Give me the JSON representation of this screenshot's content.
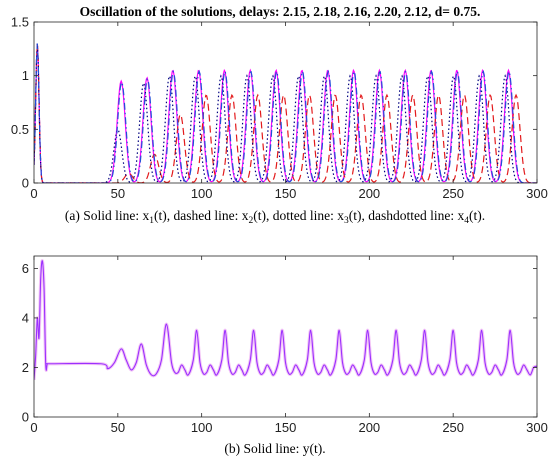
{
  "figure_title": "Oscillation of the solutions, delays: 2.15, 2.18, 2.16, 2.20, 2.12, d= 0.75.",
  "chart_data": [
    {
      "type": "line",
      "caption": {
        "text": "(a) Solid line: x",
        "sub1": "1",
        "t1": "(t), dashed line: x",
        "sub2": "2",
        "t2": "(t), dotted line: x",
        "sub3": "3",
        "t3": "(t), dashdotted line: x",
        "sub4": "4",
        "t4": "(t)."
      },
      "xlim": [
        0,
        300
      ],
      "ylim": [
        0,
        1.5
      ],
      "xticks": [
        0,
        50,
        100,
        150,
        200,
        250,
        300
      ],
      "yticks": [
        0,
        0.5,
        1,
        1.5
      ],
      "xtick_labels": [
        "0",
        "50",
        "100",
        "150",
        "200",
        "250",
        "300"
      ],
      "ytick_labels": [
        "0",
        "0.5",
        "1",
        "1.5"
      ],
      "grid": false,
      "oscillation": {
        "initial_pulse_center": 2,
        "initial_pulse_peak": 1.3,
        "quiet_until": 42,
        "first_peak": 52,
        "period": 15.4,
        "peak_values": [
          0.95,
          0.98,
          1.05,
          1.05,
          1.05,
          1.05,
          1.05,
          1.05,
          1.05,
          1.05,
          1.05,
          1.05,
          1.05,
          1.05,
          1.05,
          1.05
        ]
      },
      "series": [
        {
          "style": "solid",
          "color": "#ff00ff",
          "lag": 0,
          "amp_scale": 1.0
        },
        {
          "style": "dashed",
          "color": "#e31a1c",
          "lag": 4.5,
          "amp_scale": 0.78
        },
        {
          "style": "dotted",
          "color": "#000080",
          "lag": -2.0,
          "amp_scale": 0.95
        },
        {
          "style": "dashdot",
          "color": "#1f4fd8",
          "lag": 0.3,
          "amp_scale": 0.99
        }
      ]
    },
    {
      "type": "line",
      "caption": {
        "text": "(b) Solid line: y(t)."
      },
      "xlim": [
        0,
        300
      ],
      "ylim": [
        0,
        6.5
      ],
      "xticks": [
        0,
        50,
        100,
        150,
        200,
        250,
        300
      ],
      "yticks": [
        0,
        2,
        4,
        6
      ],
      "xtick_labels": [
        "0",
        "50",
        "100",
        "150",
        "200",
        "250",
        "300"
      ],
      "ytick_labels": [
        "0",
        "2",
        "4",
        "6"
      ],
      "grid": false,
      "series": [
        {
          "style": "solid",
          "color": "#9b30ff",
          "points": [
            [
              0,
              1.5
            ],
            [
              1,
              2.5
            ],
            [
              2,
              4.0
            ],
            [
              3,
              3.2
            ],
            [
              4,
              5.6
            ],
            [
              5,
              6.3
            ],
            [
              6,
              5.2
            ],
            [
              7,
              2.1
            ],
            [
              8,
              2.15
            ],
            [
              10,
              2.15
            ],
            [
              40,
              2.15
            ],
            [
              44,
              1.95
            ],
            [
              48,
              2.2
            ],
            [
              52,
              2.75
            ],
            [
              55,
              2.3
            ],
            [
              58,
              1.9
            ],
            [
              61,
              2.2
            ],
            [
              64,
              2.95
            ],
            [
              67,
              2.1
            ],
            [
              70,
              1.7
            ],
            [
              73,
              1.75
            ],
            [
              76,
              2.3
            ],
            [
              79,
              3.75
            ],
            [
              82,
              2.2
            ],
            [
              84,
              1.8
            ],
            [
              86,
              1.8
            ],
            [
              88,
              2.1
            ],
            [
              90,
              1.9
            ],
            [
              92,
              1.7
            ],
            [
              95,
              2.3
            ],
            [
              97,
              3.5
            ],
            [
              99,
              2.2
            ],
            [
              101,
              1.75
            ],
            [
              103,
              1.8
            ],
            [
              105,
              2.1
            ],
            [
              107,
              1.9
            ],
            [
              109,
              1.7
            ],
            [
              112,
              2.3
            ],
            [
              114,
              3.5
            ],
            [
              116,
              2.2
            ],
            [
              118,
              1.75
            ],
            [
              120,
              1.8
            ],
            [
              122,
              2.1
            ],
            [
              124,
              1.9
            ],
            [
              126,
              1.7
            ],
            [
              129,
              2.3
            ],
            [
              131,
              3.5
            ],
            [
              133,
              2.2
            ],
            [
              135,
              1.75
            ],
            [
              137,
              1.8
            ],
            [
              139,
              2.1
            ],
            [
              141,
              1.9
            ],
            [
              143,
              1.7
            ],
            [
              146,
              2.3
            ],
            [
              148,
              3.5
            ],
            [
              150,
              2.2
            ],
            [
              152,
              1.75
            ],
            [
              154,
              1.8
            ],
            [
              156,
              2.1
            ],
            [
              158,
              1.9
            ],
            [
              160,
              1.7
            ],
            [
              163,
              2.3
            ],
            [
              165,
              3.5
            ],
            [
              167,
              2.2
            ],
            [
              169,
              1.75
            ],
            [
              171,
              1.8
            ],
            [
              173,
              2.1
            ],
            [
              175,
              1.9
            ],
            [
              177,
              1.7
            ],
            [
              180,
              2.3
            ],
            [
              182,
              3.5
            ],
            [
              184,
              2.2
            ],
            [
              186,
              1.75
            ],
            [
              188,
              1.8
            ],
            [
              190,
              2.1
            ],
            [
              192,
              1.9
            ],
            [
              194,
              1.7
            ],
            [
              197,
              2.3
            ],
            [
              199,
              3.5
            ],
            [
              201,
              2.2
            ],
            [
              203,
              1.75
            ],
            [
              205,
              1.8
            ],
            [
              207,
              2.1
            ],
            [
              209,
              1.9
            ],
            [
              211,
              1.7
            ],
            [
              214,
              2.3
            ],
            [
              216,
              3.5
            ],
            [
              218,
              2.2
            ],
            [
              220,
              1.75
            ],
            [
              222,
              1.8
            ],
            [
              224,
              2.1
            ],
            [
              226,
              1.9
            ],
            [
              228,
              1.7
            ],
            [
              231,
              2.3
            ],
            [
              233,
              3.5
            ],
            [
              235,
              2.2
            ],
            [
              237,
              1.75
            ],
            [
              239,
              1.8
            ],
            [
              241,
              2.1
            ],
            [
              243,
              1.9
            ],
            [
              245,
              1.7
            ],
            [
              248,
              2.3
            ],
            [
              250,
              3.5
            ],
            [
              252,
              2.2
            ],
            [
              254,
              1.75
            ],
            [
              256,
              1.8
            ],
            [
              258,
              2.1
            ],
            [
              260,
              1.9
            ],
            [
              262,
              1.7
            ],
            [
              265,
              2.3
            ],
            [
              267,
              3.5
            ],
            [
              269,
              2.2
            ],
            [
              271,
              1.75
            ],
            [
              273,
              1.8
            ],
            [
              275,
              2.1
            ],
            [
              277,
              1.9
            ],
            [
              279,
              1.7
            ],
            [
              282,
              2.3
            ],
            [
              284,
              3.5
            ],
            [
              286,
              2.2
            ],
            [
              288,
              1.75
            ],
            [
              290,
              1.8
            ],
            [
              292,
              2.1
            ],
            [
              294,
              1.9
            ],
            [
              296,
              1.7
            ],
            [
              298,
              2.0
            ],
            [
              300,
              2.05
            ]
          ]
        }
      ]
    }
  ]
}
